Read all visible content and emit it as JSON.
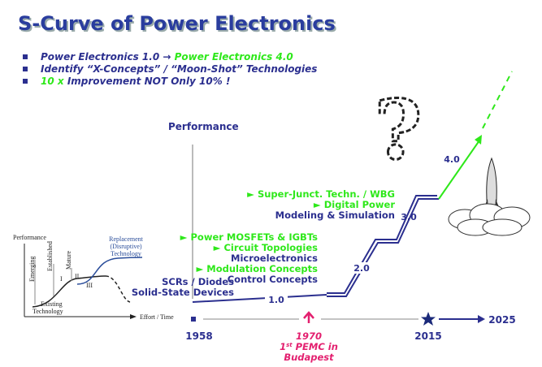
{
  "header": {
    "title": "S-Curve of Power Electronics"
  },
  "bullets": [
    {
      "parts": [
        "Power Electronics 1.0 → ",
        "Power Electronics 4.0"
      ]
    },
    {
      "parts": [
        "Identify “X-Concepts” / “Moon-Shot” Technologies"
      ]
    },
    {
      "parts": [
        "10 x",
        "Improvement NOT Only 10% !"
      ]
    }
  ],
  "diagram": {
    "axis_label": "Performance",
    "question": "?",
    "stage_1": {
      "label": "1.0",
      "lines": [
        "SCRs / Diodes",
        "Solid-State Devices"
      ]
    },
    "stage_2": {
      "label": "2.0",
      "lines": [
        "► Power MOSFETs & IGBTs",
        "► Circuit Topologies",
        "Microelectronics",
        "► Modulation Concepts",
        "Control Concepts"
      ]
    },
    "stage_3": {
      "label": "3.0",
      "lines": [
        "► Super-Junct. Techn. / WBG",
        "► Digital Power",
        "Modeling & Simulation"
      ]
    },
    "stage_4": {
      "label": "4.0"
    },
    "timeline": {
      "start": "1958",
      "mid": [
        "1970",
        "1",
        "st",
        " PEMC in",
        "Budapest"
      ],
      "star": "2015",
      "end": "2025"
    }
  },
  "inset": {
    "y_label": "Performance",
    "x_label": "Effort / Time",
    "phases": [
      "Emerging",
      "Established",
      "Mature"
    ],
    "roman": [
      "I",
      "II",
      "III"
    ],
    "replacement": [
      "Replacement",
      "(Disruptive)",
      "Technology"
    ],
    "existing": [
      "Existing",
      "Technology"
    ]
  }
}
